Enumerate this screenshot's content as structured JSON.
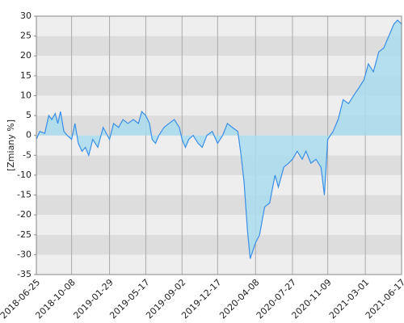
{
  "chart_data": {
    "type": "area",
    "y_label": "[Zmiany %]",
    "x": [
      "2018-06-25",
      "2018-07-05",
      "2018-07-20",
      "2018-08-01",
      "2018-08-10",
      "2018-08-20",
      "2018-08-28",
      "2018-09-05",
      "2018-09-15",
      "2018-09-25",
      "2018-10-08",
      "2018-10-18",
      "2018-10-28",
      "2018-11-08",
      "2018-11-18",
      "2018-11-28",
      "2018-12-10",
      "2018-12-25",
      "2019-01-10",
      "2019-01-29",
      "2019-02-10",
      "2019-02-25",
      "2019-03-10",
      "2019-03-25",
      "2019-04-10",
      "2019-04-25",
      "2019-05-05",
      "2019-05-17",
      "2019-05-28",
      "2019-06-05",
      "2019-06-15",
      "2019-06-25",
      "2019-07-10",
      "2019-07-25",
      "2019-08-10",
      "2019-08-25",
      "2019-09-02",
      "2019-09-12",
      "2019-09-22",
      "2019-10-05",
      "2019-10-20",
      "2019-11-01",
      "2019-11-15",
      "2019-12-01",
      "2019-12-17",
      "2020-01-01",
      "2020-01-15",
      "2020-01-30",
      "2020-02-15",
      "2020-02-25",
      "2020-03-05",
      "2020-03-15",
      "2020-03-23",
      "2020-04-08",
      "2020-04-20",
      "2020-05-05",
      "2020-05-20",
      "2020-06-05",
      "2020-06-15",
      "2020-07-01",
      "2020-07-15",
      "2020-07-27",
      "2020-08-10",
      "2020-08-25",
      "2020-09-05",
      "2020-09-20",
      "2020-10-05",
      "2020-10-20",
      "2020-10-30",
      "2020-11-09",
      "2020-11-25",
      "2020-12-10",
      "2020-12-25",
      "2021-01-10",
      "2021-01-25",
      "2021-02-10",
      "2021-02-25",
      "2021-03-10",
      "2021-03-25",
      "2021-04-10",
      "2021-04-25",
      "2021-05-10",
      "2021-05-25",
      "2021-06-05",
      "2021-06-17"
    ],
    "values": [
      -1,
      1,
      0.5,
      5,
      4,
      5.5,
      3,
      6,
      1,
      0,
      -1,
      3,
      -2,
      -4,
      -3,
      -5,
      -1,
      -3,
      2,
      -1,
      3,
      2,
      4,
      3,
      4,
      3,
      6,
      5,
      3,
      -1,
      -2,
      0,
      2,
      3,
      4,
      2,
      -1,
      -3,
      -1,
      0,
      -2,
      -3,
      0,
      1,
      -2,
      0,
      3,
      2,
      1,
      -5,
      -12,
      -24,
      -31,
      -27,
      -25,
      -18,
      -17,
      -10,
      -13,
      -8,
      -7,
      -6,
      -4,
      -6,
      -4,
      -7,
      -6,
      -8,
      -15,
      -1,
      1,
      4,
      9,
      8,
      10,
      12,
      14,
      18,
      16,
      21,
      22,
      25,
      28,
      29,
      28
    ],
    "color": "#3a8ee6",
    "fill_color": "#a9dcef",
    "xlim": [
      "2018-06-25",
      "2021-06-17"
    ],
    "xticks": [
      "2018-06-25",
      "2018-10-08",
      "2019-01-29",
      "2019-05-17",
      "2019-09-02",
      "2019-12-17",
      "2020-04-08",
      "2020-07-27",
      "2020-11-09",
      "2021-03-01",
      "2021-06-17"
    ],
    "ylim": [
      -35,
      30
    ],
    "yticks": [
      -35,
      -30,
      -25,
      -20,
      -15,
      -10,
      -5,
      0,
      5,
      10,
      15,
      20,
      25,
      30
    ],
    "grid": true,
    "band_colors": [
      "#eeeeee",
      "#dddddd"
    ]
  }
}
